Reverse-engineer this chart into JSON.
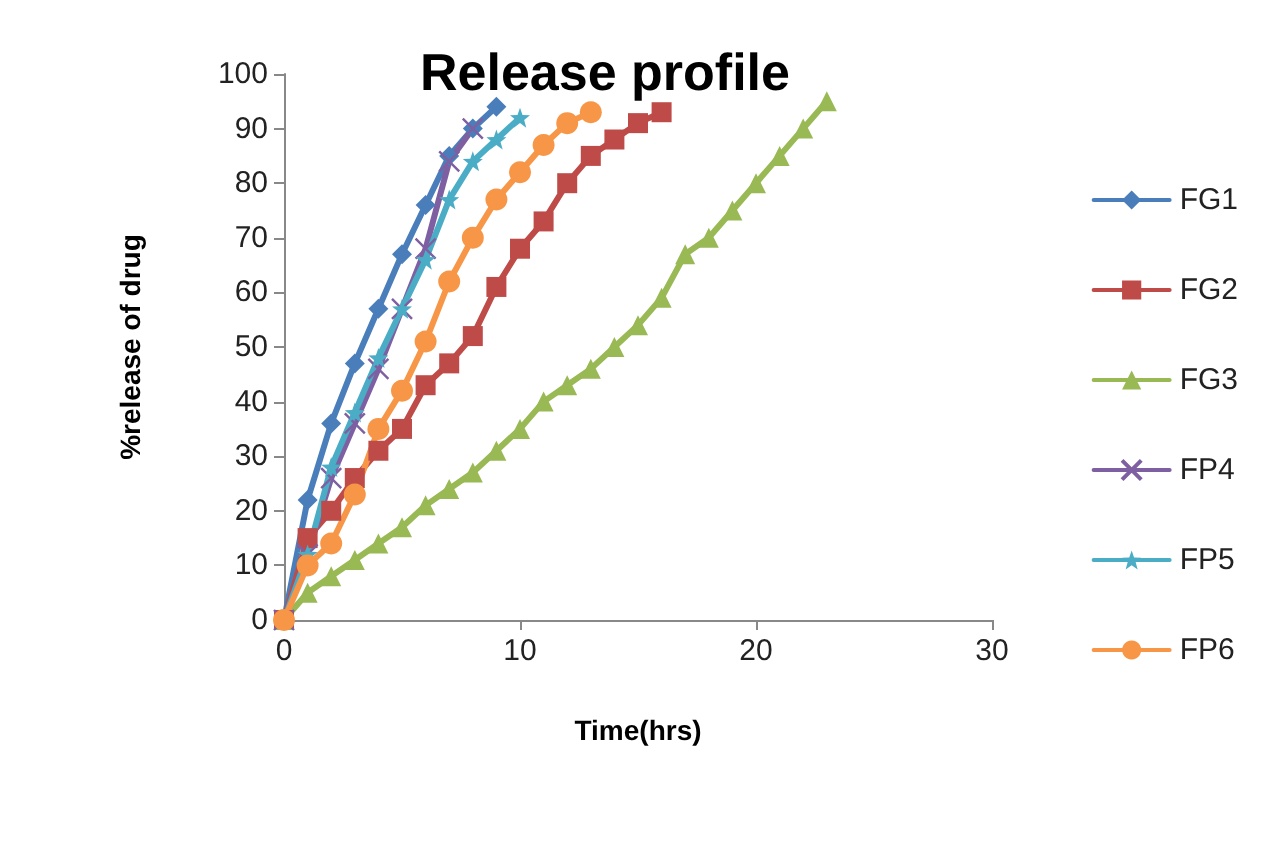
{
  "chart_data": {
    "type": "line",
    "title": "Release profile",
    "xlabel": "Time(hrs)",
    "ylabel": "%release of drug",
    "xlim": [
      0,
      30
    ],
    "xticks": [
      0,
      10,
      20,
      30
    ],
    "ylim": [
      0,
      100
    ],
    "yticks": [
      0,
      10,
      20,
      30,
      40,
      50,
      60,
      70,
      80,
      90,
      100
    ],
    "grid": false,
    "legend": "right",
    "series": [
      {
        "name": "FG1",
        "color": "#4a7ebb",
        "marker": "diamond",
        "x": [
          0,
          1,
          2,
          3,
          4,
          5,
          6,
          7,
          8,
          9
        ],
        "values": [
          0,
          22,
          36,
          47,
          57,
          67,
          76,
          85,
          90,
          94
        ]
      },
      {
        "name": "FG2",
        "color": "#be4b48",
        "marker": "square",
        "x": [
          0,
          1,
          2,
          3,
          4,
          5,
          6,
          7,
          8,
          9,
          10,
          11,
          12,
          13,
          14,
          15,
          16
        ],
        "values": [
          0,
          15,
          20,
          26,
          31,
          35,
          43,
          47,
          52,
          61,
          68,
          73,
          80,
          85,
          88,
          91,
          93
        ]
      },
      {
        "name": "FG3",
        "color": "#98b954",
        "marker": "triangle",
        "x": [
          0,
          1,
          2,
          3,
          4,
          5,
          6,
          7,
          8,
          9,
          10,
          11,
          12,
          13,
          14,
          15,
          16,
          17,
          18,
          19,
          20,
          21,
          22,
          23
        ],
        "values": [
          0,
          5,
          8,
          11,
          14,
          17,
          21,
          24,
          27,
          31,
          35,
          40,
          43,
          46,
          50,
          54,
          59,
          67,
          70,
          75,
          80,
          85,
          90,
          95
        ]
      },
      {
        "name": "FP4",
        "color": "#7e5fa1",
        "marker": "cross",
        "x": [
          0,
          1,
          2,
          3,
          4,
          5,
          6,
          7,
          8
        ],
        "values": [
          0,
          12,
          26,
          36,
          46,
          57,
          68,
          84,
          90
        ]
      },
      {
        "name": "FP5",
        "color": "#4bacc6",
        "marker": "star",
        "x": [
          0,
          1,
          2,
          3,
          4,
          5,
          6,
          7,
          8,
          9,
          10
        ],
        "values": [
          0,
          12,
          28,
          38,
          48,
          57,
          66,
          77,
          84,
          88,
          92
        ]
      },
      {
        "name": "FP6",
        "color": "#f79646",
        "marker": "circle",
        "x": [
          0,
          1,
          2,
          3,
          4,
          5,
          6,
          7,
          8,
          9,
          10,
          11,
          12,
          13
        ],
        "values": [
          0,
          10,
          14,
          23,
          35,
          42,
          51,
          62,
          70,
          77,
          82,
          87,
          91,
          93
        ]
      }
    ]
  }
}
